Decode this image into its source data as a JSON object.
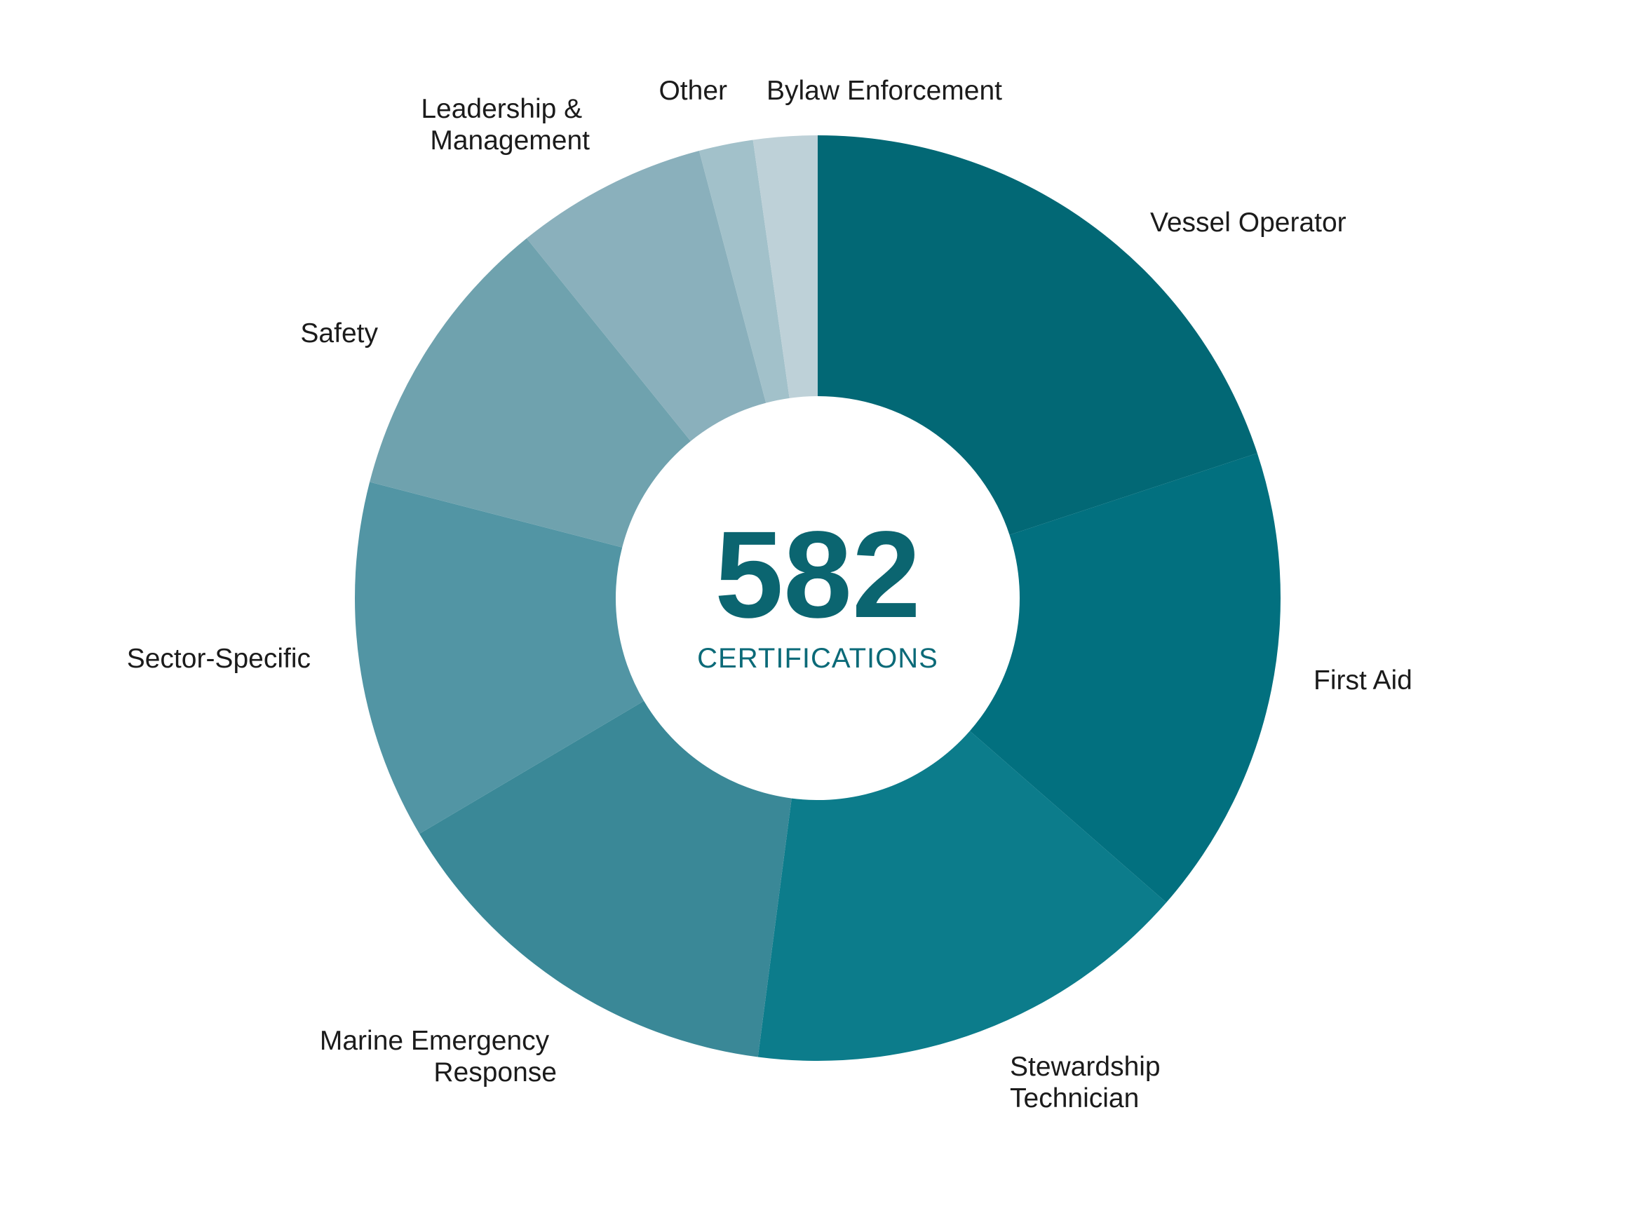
{
  "chart_data": {
    "type": "pie",
    "donut": true,
    "center": {
      "value": "582",
      "caption": "CERTIFICATIONS"
    },
    "categories": [
      "Vessel Operator",
      "First Aid",
      "Stewardship Technician",
      "Marine Emergency Response",
      "Sector-Specific",
      "Safety",
      "Leadership & Management",
      "Other",
      "Bylaw Enforcement"
    ],
    "values": [
      116,
      96,
      91,
      84,
      73,
      59,
      39,
      11,
      13
    ],
    "colors": [
      "#026875",
      "#02707f",
      "#0c7c8b",
      "#3a8897",
      "#5295a4",
      "#6fa2ae",
      "#8ab0bc",
      "#a2c1ca",
      "#bed1d8"
    ],
    "order": "clockwise from top",
    "legend": "none (direct labels)"
  }
}
